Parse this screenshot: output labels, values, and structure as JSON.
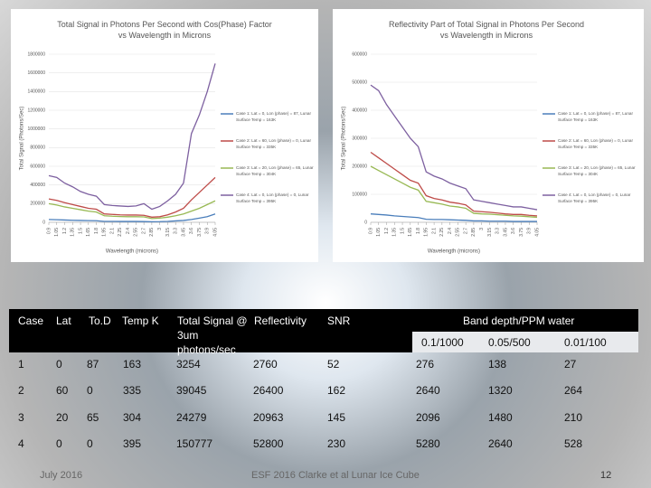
{
  "charts": [
    {
      "type": "line",
      "title": "Total Signal in Photons Per Second with Cos(Phase) Factor vs Wavelength in Microns",
      "y_label": "Total Signal (Photons/Sec)",
      "x_label": "Wavelength (microns)",
      "x": [
        0.9,
        1.05,
        1.2,
        1.35,
        1.5,
        1.65,
        1.8,
        1.95,
        2.1,
        2.25,
        2.4,
        2.55,
        2.7,
        2.85,
        3.0,
        3.15,
        3.3,
        3.45,
        3.6,
        3.75,
        3.9,
        4.05
      ],
      "xlim": [
        0.9,
        4.05
      ],
      "xticks": [
        0.9,
        1.05,
        1.2,
        1.35,
        1.5,
        1.65,
        1.8,
        1.95,
        2.1,
        2.25,
        2.4,
        2.55,
        2.7,
        2.85,
        3,
        3.15,
        3.3,
        3.45,
        3.6,
        3.75,
        3.9,
        4.05
      ],
      "ylim": [
        0,
        1800000
      ],
      "yticks": [
        0,
        200000,
        400000,
        600000,
        800000,
        1000000,
        1200000,
        1400000,
        1600000,
        1800000
      ],
      "series": [
        {
          "name": "Case 1: Lat = 0, Lon (phase) = 87, Lunar Surface Temp = 163K",
          "color": "#4a7ebb",
          "values": [
            30000,
            28000,
            25000,
            22000,
            20000,
            18000,
            17000,
            10000,
            10000,
            9000,
            9000,
            9000,
            8000,
            6000,
            7000,
            10000,
            15000,
            20000,
            30000,
            45000,
            60000,
            90000
          ]
        },
        {
          "name": "Case 2: Lat = 60, Lon (phase) = 0, Lunar Surface Temp = 335K",
          "color": "#be4b48",
          "values": [
            250000,
            235000,
            210000,
            190000,
            170000,
            150000,
            140000,
            90000,
            85000,
            80000,
            78000,
            78000,
            75000,
            55000,
            60000,
            80000,
            110000,
            150000,
            240000,
            320000,
            400000,
            480000
          ]
        },
        {
          "name": "Case 3: Lat = 20, Lon (phase) = 65, Lunar Surface Temp = 304K",
          "color": "#98b954",
          "values": [
            200000,
            185000,
            165000,
            150000,
            135000,
            120000,
            110000,
            70000,
            65000,
            62000,
            60000,
            60000,
            58000,
            40000,
            45000,
            55000,
            70000,
            90000,
            120000,
            150000,
            190000,
            230000
          ]
        },
        {
          "name": "Case 4: Lat = 0, Lon (phase) = 0, Lunar Surface Temp = 395K",
          "color": "#7d60a0",
          "values": [
            500000,
            480000,
            420000,
            380000,
            330000,
            300000,
            280000,
            190000,
            180000,
            175000,
            170000,
            175000,
            200000,
            140000,
            170000,
            230000,
            300000,
            420000,
            950000,
            1150000,
            1400000,
            1700000
          ]
        }
      ]
    },
    {
      "type": "line",
      "title": "Reflectivity Part of Total Signal in Photons Per Second vs Wavelength in Microns",
      "y_label": "Total Signal (Photons/Sec)",
      "x_label": "Wavelength (microns)",
      "x": [
        0.9,
        1.05,
        1.2,
        1.35,
        1.5,
        1.65,
        1.8,
        1.95,
        2.1,
        2.25,
        2.4,
        2.55,
        2.7,
        2.85,
        3.0,
        3.15,
        3.3,
        3.45,
        3.6,
        3.75,
        3.9,
        4.05
      ],
      "xlim": [
        0.9,
        4.05
      ],
      "xticks": [
        0.9,
        1.05,
        1.2,
        1.35,
        1.5,
        1.65,
        1.8,
        1.95,
        2.1,
        2.25,
        2.4,
        2.55,
        2.7,
        2.85,
        3,
        3.15,
        3.3,
        3.45,
        3.6,
        3.75,
        3.9,
        4.05
      ],
      "ylim": [
        0,
        600000
      ],
      "yticks": [
        0,
        100000,
        200000,
        300000,
        400000,
        500000,
        600000
      ],
      "series": [
        {
          "name": "Case 1: Lat = 0, Lon (phase) = 87, Lunar Surface Temp = 163K",
          "color": "#4a7ebb",
          "values": [
            30000,
            28000,
            26000,
            23000,
            21000,
            19000,
            17000,
            11000,
            10000,
            10000,
            9000,
            8000,
            7000,
            5000,
            5000,
            4000,
            4000,
            4000,
            3000,
            3000,
            3000,
            3000
          ]
        },
        {
          "name": "Case 2: Lat = 60, Lon (phase) = 0, Lunar Surface Temp = 335K",
          "color": "#be4b48",
          "values": [
            250000,
            230000,
            210000,
            190000,
            170000,
            150000,
            140000,
            95000,
            85000,
            80000,
            72000,
            68000,
            62000,
            40000,
            38000,
            36000,
            33000,
            30000,
            28000,
            28000,
            25000,
            23000
          ]
        },
        {
          "name": "Case 3: Lat = 20, Lon (phase) = 65, Lunar Surface Temp = 304K",
          "color": "#98b954",
          "values": [
            200000,
            185000,
            170000,
            155000,
            140000,
            125000,
            115000,
            75000,
            70000,
            65000,
            58000,
            55000,
            50000,
            32000,
            30000,
            29000,
            27000,
            25000,
            23000,
            22000,
            20000,
            18000
          ]
        },
        {
          "name": "Case 4: Lat = 0, Lon (phase) = 0, Lunar Surface Temp = 395K",
          "color": "#7d60a0",
          "values": [
            490000,
            470000,
            420000,
            380000,
            340000,
            300000,
            270000,
            180000,
            165000,
            155000,
            140000,
            130000,
            120000,
            80000,
            75000,
            70000,
            65000,
            60000,
            55000,
            55000,
            50000,
            45000
          ]
        }
      ]
    }
  ],
  "table": {
    "header": [
      "Case",
      "Lat",
      "To.D",
      "Temp K",
      "Total Signal @ 3um photons/sec",
      "Reflectivity",
      "SNR",
      "Band depth/PPM water"
    ],
    "subheader": [
      "0.1/1000",
      "0.05/500",
      "0.01/100"
    ],
    "rows": [
      [
        1,
        0,
        87,
        163,
        3254,
        2760,
        52,
        276,
        138,
        27
      ],
      [
        2,
        60,
        0,
        335,
        39045,
        26400,
        162,
        2640,
        1320,
        264
      ],
      [
        3,
        20,
        65,
        304,
        24279,
        20963,
        145,
        2096,
        1480,
        210
      ],
      [
        4,
        0,
        0,
        395,
        150777,
        52800,
        230,
        5280,
        2640,
        528
      ]
    ]
  },
  "footer": {
    "date": "July 2016",
    "center": "ESF 2016 Clarke et al Lunar Ice Cube",
    "page": "12"
  }
}
